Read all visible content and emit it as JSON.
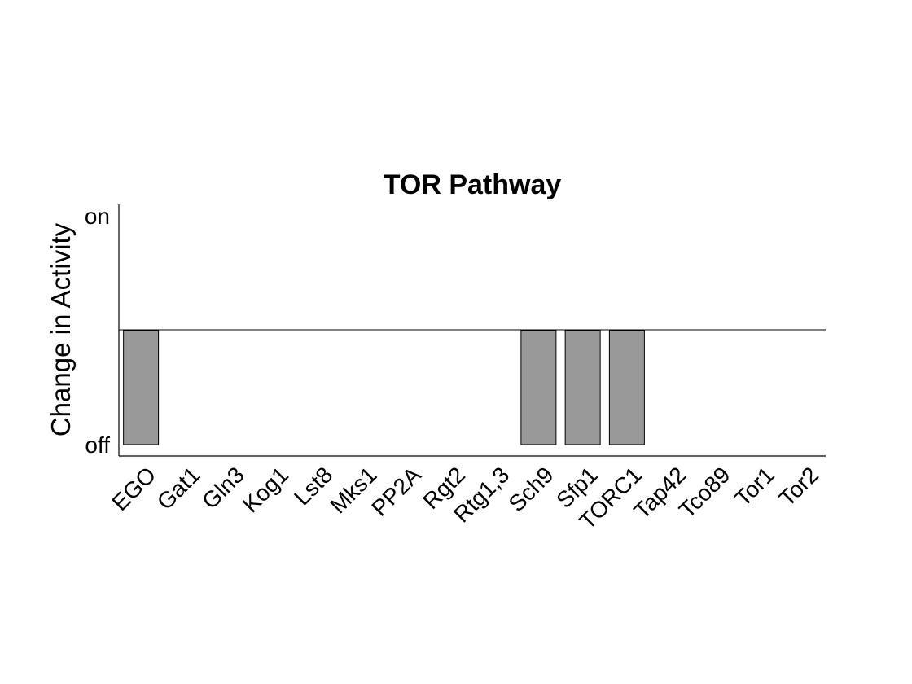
{
  "chart_data": {
    "type": "bar",
    "title": "TOR Pathway",
    "xlabel": "",
    "ylabel": "Change in Activity",
    "yticks": [
      "off",
      "on"
    ],
    "ylim": [
      -1,
      1
    ],
    "baseline": 0,
    "categories": [
      "EGO",
      "Gat1",
      "Gln3",
      "Kog1",
      "Lst8",
      "Mks1",
      "PP2A",
      "Rgt2",
      "Rtg1,3",
      "Sch9",
      "Sfp1",
      "TORC1",
      "Tap42",
      "Tco89",
      "Tor1",
      "Tor2"
    ],
    "values": [
      -1,
      0,
      0,
      0,
      0,
      0,
      0,
      0,
      0,
      -1,
      -1,
      -1,
      0,
      0,
      0,
      0
    ],
    "bar_color": "#999999",
    "bar_edge_color": "#000000",
    "grid": false,
    "legend": false
  }
}
